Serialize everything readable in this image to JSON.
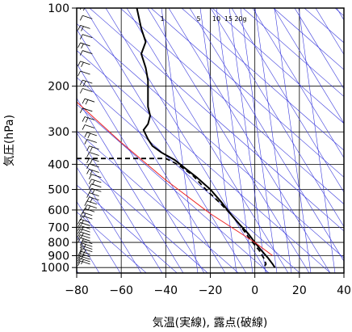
{
  "chart_data": {
    "type": "line",
    "title": "",
    "xlabel": "気温(実線), 露点(破線)",
    "ylabel": "気圧(hPa)",
    "xlim": [
      -80,
      40
    ],
    "ylim": [
      1050,
      100
    ],
    "y_scale": "log",
    "x_ticks": [
      -80,
      -60,
      -40,
      -20,
      0,
      20,
      40
    ],
    "x_tick_labels": [
      "−80",
      "−60",
      "−40",
      "−20",
      "0",
      "20",
      "40"
    ],
    "y_ticks": [
      100,
      200,
      300,
      400,
      500,
      600,
      700,
      800,
      900,
      1000
    ],
    "y_tick_labels": [
      "100",
      "200",
      "300",
      "400",
      "500",
      "600",
      "700",
      "800",
      "900",
      "1000"
    ],
    "grid": true,
    "mixing_ratio_labels": [
      "1",
      "5",
      "10",
      "15",
      "20g"
    ],
    "colors": {
      "background": "#ffffff",
      "grid": "#000000",
      "adiabats": "#3b3bdc",
      "reference_line": "#ee2222",
      "temperature": "#000000",
      "dewpoint": "#000000",
      "wind_barbs": "#000000"
    },
    "series": [
      {
        "key": "temperature",
        "style": "solid",
        "points": [
          [
            -53,
            100
          ],
          [
            -51,
            120
          ],
          [
            -49,
            135
          ],
          [
            -51,
            150
          ],
          [
            -49,
            170
          ],
          [
            -48,
            190
          ],
          [
            -48,
            210
          ],
          [
            -48,
            240
          ],
          [
            -47,
            260
          ],
          [
            -48,
            280
          ],
          [
            -50,
            295
          ],
          [
            -48,
            320
          ],
          [
            -46,
            340
          ],
          [
            -42,
            360
          ],
          [
            -36,
            385
          ],
          [
            -32,
            410
          ],
          [
            -26,
            450
          ],
          [
            -20,
            500
          ],
          [
            -15,
            560
          ],
          [
            -11,
            620
          ],
          [
            -7,
            680
          ],
          [
            -3,
            740
          ],
          [
            0,
            800
          ],
          [
            3,
            860
          ],
          [
            6,
            920
          ],
          [
            8,
            970
          ],
          [
            9,
            1000
          ]
        ]
      },
      {
        "key": "dewpoint",
        "style": "dashed",
        "points": [
          [
            -80,
            380
          ],
          [
            -40,
            380
          ],
          [
            -36,
            395
          ],
          [
            -33,
            410
          ],
          [
            -28,
            440
          ],
          [
            -22,
            500
          ],
          [
            -16,
            560
          ],
          [
            -11,
            620
          ],
          [
            -7,
            680
          ],
          [
            -4,
            740
          ],
          [
            -1,
            800
          ],
          [
            2,
            860
          ],
          [
            4,
            920
          ],
          [
            5,
            970
          ],
          [
            4,
            1000
          ]
        ]
      },
      {
        "key": "reference",
        "style": "solid",
        "points": [
          [
            -80,
            230
          ],
          [
            -60,
            330
          ],
          [
            -40,
            460
          ],
          [
            -20,
            620
          ],
          [
            0,
            800
          ],
          [
            8,
            900
          ]
        ]
      }
    ],
    "wind_barbs": [
      {
        "pressure": 100,
        "x": -73
      },
      {
        "pressure": 110,
        "x": -73
      },
      {
        "pressure": 120,
        "x": -74
      },
      {
        "pressure": 130,
        "x": -73
      },
      {
        "pressure": 140,
        "x": -74
      },
      {
        "pressure": 150,
        "x": -73
      },
      {
        "pressure": 165,
        "x": -74
      },
      {
        "pressure": 180,
        "x": -74
      },
      {
        "pressure": 195,
        "x": -73
      },
      {
        "pressure": 210,
        "x": -73
      },
      {
        "pressure": 230,
        "x": -72
      },
      {
        "pressure": 250,
        "x": -73
      },
      {
        "pressure": 270,
        "x": -72
      },
      {
        "pressure": 290,
        "x": -72
      },
      {
        "pressure": 310,
        "x": -71
      },
      {
        "pressure": 330,
        "x": -71
      },
      {
        "pressure": 350,
        "x": -70
      },
      {
        "pressure": 370,
        "x": -70
      },
      {
        "pressure": 390,
        "x": -70
      },
      {
        "pressure": 410,
        "x": -70
      },
      {
        "pressure": 430,
        "x": -70
      },
      {
        "pressure": 450,
        "x": -69
      },
      {
        "pressure": 470,
        "x": -69
      },
      {
        "pressure": 490,
        "x": -69
      },
      {
        "pressure": 510,
        "x": -69
      },
      {
        "pressure": 530,
        "x": -70
      },
      {
        "pressure": 550,
        "x": -70
      },
      {
        "pressure": 570,
        "x": -71
      },
      {
        "pressure": 590,
        "x": -71
      },
      {
        "pressure": 610,
        "x": -72
      },
      {
        "pressure": 630,
        "x": -73
      },
      {
        "pressure": 650,
        "x": -73
      },
      {
        "pressure": 670,
        "x": -74
      },
      {
        "pressure": 690,
        "x": -74
      },
      {
        "pressure": 710,
        "x": -74
      },
      {
        "pressure": 730,
        "x": -74
      },
      {
        "pressure": 750,
        "x": -74
      },
      {
        "pressure": 770,
        "x": -74
      },
      {
        "pressure": 790,
        "x": -74
      },
      {
        "pressure": 810,
        "x": -73
      },
      {
        "pressure": 830,
        "x": -73
      },
      {
        "pressure": 850,
        "x": -73
      },
      {
        "pressure": 870,
        "x": -73
      },
      {
        "pressure": 890,
        "x": -74
      },
      {
        "pressure": 910,
        "x": -74
      },
      {
        "pressure": 930,
        "x": -74
      },
      {
        "pressure": 950,
        "x": -74
      },
      {
        "pressure": 970,
        "x": -74
      }
    ]
  }
}
